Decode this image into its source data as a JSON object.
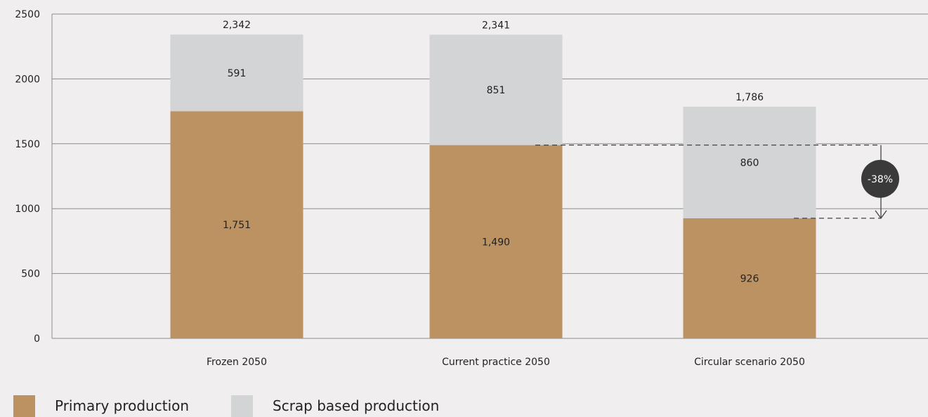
{
  "chart_data": {
    "type": "bar",
    "stacked": true,
    "categories": [
      "Frozen 2050",
      "Current practice 2050",
      "Circular scenario 2050"
    ],
    "series": [
      {
        "name": "Primary production",
        "values": [
          1751,
          1490,
          926
        ],
        "labels": [
          "1,751",
          "1,490",
          "926"
        ],
        "color": "#bc9262"
      },
      {
        "name": "Scrap based production",
        "values": [
          591,
          851,
          860
        ],
        "labels": [
          "591",
          "851",
          "860"
        ],
        "color": "#d3d4d6"
      }
    ],
    "totals": [
      2342,
      2341,
      1786
    ],
    "total_labels": [
      "2,342",
      "2,341",
      "1,786"
    ],
    "ylim": [
      0,
      2500
    ],
    "yticks": [
      "0",
      "500",
      "1000",
      "1500",
      "2000",
      "2500"
    ],
    "grid": true,
    "legend_position": "bottom-left",
    "annotation": {
      "text": "-38%",
      "from_category": "Current practice 2050",
      "from_value": 1490,
      "to_category": "Circular scenario 2050",
      "to_value": 926
    }
  }
}
